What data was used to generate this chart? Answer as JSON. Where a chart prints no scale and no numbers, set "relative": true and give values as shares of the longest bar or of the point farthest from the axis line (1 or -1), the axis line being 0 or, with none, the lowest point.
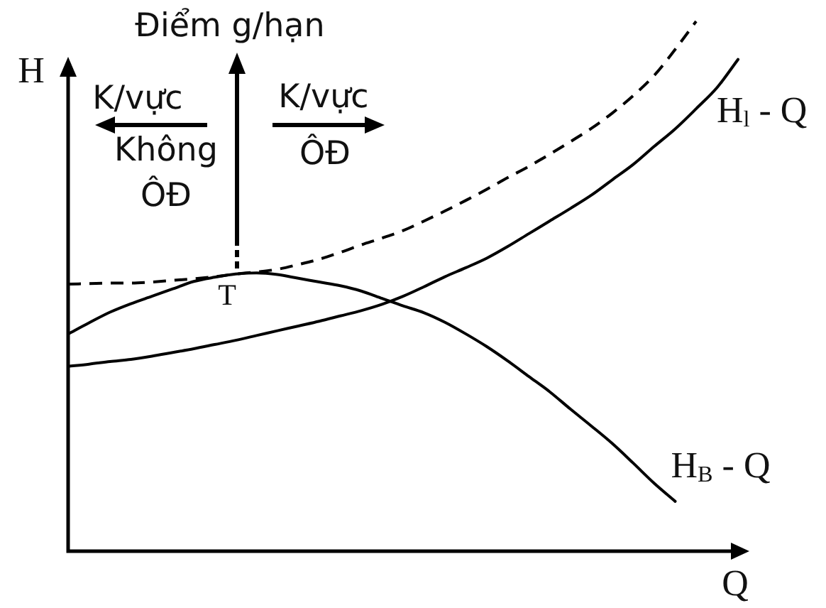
{
  "chart_data": {
    "type": "line",
    "relative": true,
    "xlabel": "Q",
    "ylabel": "H",
    "marker": "none",
    "line_style": "solid",
    "annotations": [
      "Điểm g/hạn",
      "K/vực",
      "Không ÔĐ",
      "K/vực",
      "ÔĐ",
      "T"
    ],
    "categories": [
      null,
      null,
      null,
      null,
      null,
      null,
      null,
      null,
      null,
      null,
      null,
      null,
      null,
      null,
      null,
      null,
      null,
      null,
      null,
      null,
      null,
      null,
      null,
      null,
      null,
      null,
      null,
      null,
      null,
      null,
      null,
      null,
      null
    ],
    "series": [
      {
        "name": "H$_{B}$ - Q",
        "color": "#000000",
        "values": [
          0.41,
          0.431,
          0.451,
          0.467,
          0.481,
          0.495,
          0.509,
          0.517,
          0.523,
          0.525,
          0.522,
          0.515,
          0.508,
          0.501,
          0.491,
          0.477,
          0.463,
          0.45,
          0.432,
          0.41,
          0.386,
          0.359,
          0.33,
          0.301,
          0.268,
          0.236,
          0.203,
          0.166,
          0.128,
          0.094,
          null,
          null,
          null
        ]
      },
      {
        "name": "H$_{l}$ - Q",
        "color": "#000000",
        "values": [
          0.349,
          0.353,
          0.358,
          0.362,
          0.368,
          0.375,
          0.382,
          0.39,
          0.398,
          0.407,
          0.416,
          0.425,
          0.434,
          0.444,
          0.454,
          0.466,
          0.481,
          0.499,
          0.518,
          0.535,
          0.553,
          0.575,
          0.599,
          0.623,
          0.647,
          0.672,
          0.701,
          0.73,
          0.764,
          0.797,
          0.835,
          0.875,
          0.928
        ]
      },
      {
        "color": "#000000",
        "line_style": "dashed",
        "values": [
          0.504,
          0.505,
          0.506,
          0.506,
          0.508,
          0.511,
          0.514,
          0.518,
          0.523,
          0.527,
          0.532,
          0.541,
          0.551,
          0.564,
          0.578,
          0.591,
          0.605,
          0.623,
          0.642,
          0.662,
          0.683,
          0.705,
          0.726,
          0.749,
          0.773,
          0.798,
          0.827,
          0.86,
          0.898,
          0.947,
          1,
          null,
          null
        ]
      }
    ]
  }
}
